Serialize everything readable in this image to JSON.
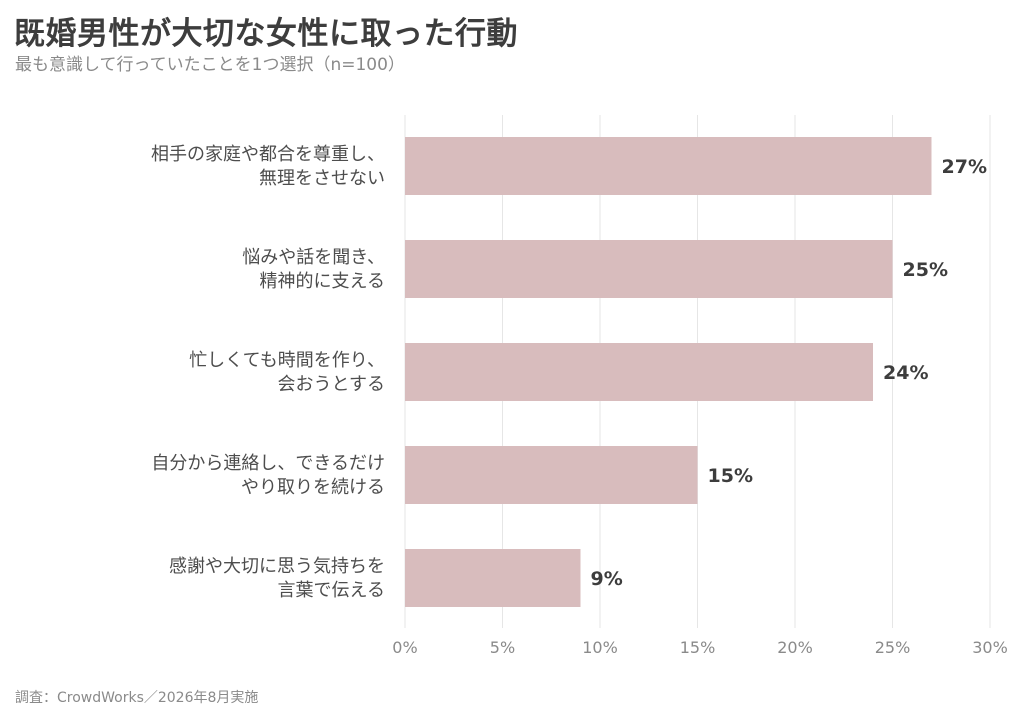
{
  "title": "既婚男性が大切な女性に取った行動",
  "subtitle": "最も意識して行っていたことを1つ選択（n=100）",
  "source": "調査：CrowdWorks／2026年8月実施",
  "colors": {
    "bar": "#d8bcbd",
    "grid": "#e6e6e6"
  },
  "chart_data": {
    "type": "bar",
    "orientation": "horizontal",
    "title": "既婚男性が大切な女性に取った行動",
    "subtitle": "最も意識して行っていたことを1つ選択（n=100）",
    "categories": [
      [
        "相手の家庭や都合を尊重し、",
        "無理をさせない"
      ],
      [
        "悩みや話を聞き、",
        "精神的に支える"
      ],
      [
        "忙しくても時間を作り、",
        "会おうとする"
      ],
      [
        "自分から連絡し、できるだけ",
        "やり取りを続ける"
      ],
      [
        "感謝や大切に思う気持ちを",
        "言葉で伝える"
      ]
    ],
    "values": [
      27,
      25,
      24,
      15,
      9
    ],
    "value_labels": [
      "27%",
      "25%",
      "24%",
      "15%",
      "9%"
    ],
    "xlim": [
      0,
      30
    ],
    "xticks": [
      0,
      5,
      10,
      15,
      20,
      25,
      30
    ],
    "xtick_labels": [
      "0%",
      "5%",
      "10%",
      "15%",
      "20%",
      "25%",
      "30%"
    ],
    "grid": "vertical",
    "legend": "none"
  }
}
